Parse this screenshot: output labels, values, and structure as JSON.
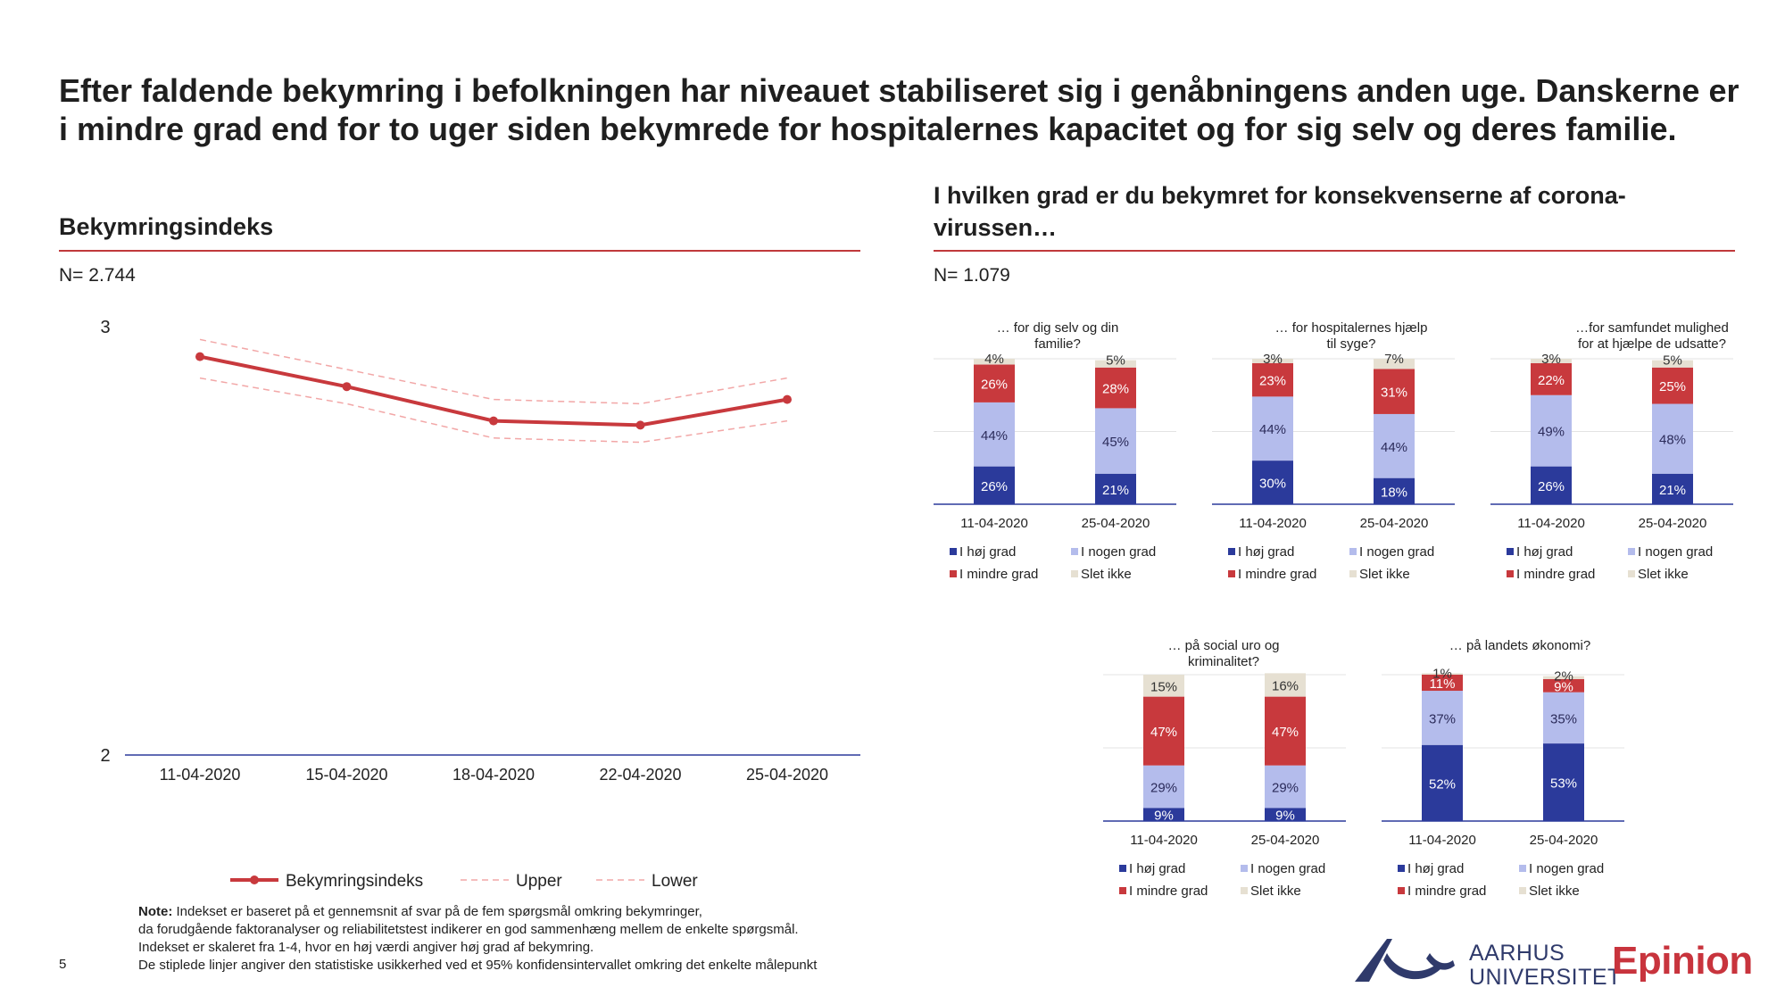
{
  "title": "Efter faldende bekymring i befolkningen har niveauet stabiliseret sig i genåbningens anden uge. Danskerne er i mindre grad end for to uger siden bekymrede for hospitalernes kapacitet og for sig selv og deres familie.",
  "left": {
    "heading": "Bekymringsindeks",
    "n": "N= 2.744"
  },
  "right": {
    "heading": "I hvilken grad er du bekymret for konsekvenserne af corona-virussen…",
    "n": "N= 1.079"
  },
  "chart_data": [
    {
      "type": "line",
      "x": [
        "11-04-2020",
        "15-04-2020",
        "18-04-2020",
        "22-04-2020",
        "25-04-2020"
      ],
      "series": [
        {
          "name": "Bekymringsindeks",
          "values": [
            2.93,
            2.86,
            2.78,
            2.77,
            2.83
          ],
          "color": "#c8393d",
          "style": "solid-markers"
        },
        {
          "name": "Upper",
          "values": [
            2.97,
            2.9,
            2.83,
            2.82,
            2.88
          ],
          "color": "#f2a7a7",
          "style": "dashed"
        },
        {
          "name": "Lower",
          "values": [
            2.88,
            2.82,
            2.74,
            2.73,
            2.78
          ],
          "color": "#f2a7a7",
          "style": "dashed"
        }
      ],
      "y_ticks": [
        "3",
        "2"
      ],
      "ylim": [
        2,
        3
      ],
      "legend": "bottom"
    },
    {
      "type": "bar",
      "stacked": true,
      "title": "… for dig selv og din familie?",
      "categories": [
        "11-04-2020",
        "25-04-2020"
      ],
      "series": [
        {
          "name": "I høj grad",
          "values": [
            26,
            21
          ]
        },
        {
          "name": "I nogen grad",
          "values": [
            44,
            45
          ]
        },
        {
          "name": "I mindre grad",
          "values": [
            26,
            28
          ]
        },
        {
          "name": "Slet ikke",
          "values": [
            4,
            5
          ]
        }
      ],
      "legend": "bottom"
    },
    {
      "type": "bar",
      "stacked": true,
      "title": "… for hospitalernes hjælp til syge?",
      "categories": [
        "11-04-2020",
        "25-04-2020"
      ],
      "series": [
        {
          "name": "I høj grad",
          "values": [
            30,
            18
          ]
        },
        {
          "name": "I nogen grad",
          "values": [
            44,
            44
          ]
        },
        {
          "name": "I mindre grad",
          "values": [
            23,
            31
          ]
        },
        {
          "name": "Slet ikke",
          "values": [
            3,
            7
          ]
        }
      ],
      "legend": "bottom"
    },
    {
      "type": "bar",
      "stacked": true,
      "title": "…for samfundet mulighed for at hjælpe de udsatte?",
      "categories": [
        "11-04-2020",
        "25-04-2020"
      ],
      "series": [
        {
          "name": "I høj grad",
          "values": [
            26,
            21
          ]
        },
        {
          "name": "I nogen grad",
          "values": [
            49,
            48
          ]
        },
        {
          "name": "I mindre grad",
          "values": [
            22,
            25
          ]
        },
        {
          "name": "Slet ikke",
          "values": [
            3,
            5
          ]
        }
      ],
      "legend": "bottom"
    },
    {
      "type": "bar",
      "stacked": true,
      "title": "… på social uro og kriminalitet?",
      "categories": [
        "11-04-2020",
        "25-04-2020"
      ],
      "series": [
        {
          "name": "I høj grad",
          "values": [
            9,
            9
          ]
        },
        {
          "name": "I nogen grad",
          "values": [
            29,
            29
          ]
        },
        {
          "name": "I mindre grad",
          "values": [
            47,
            47
          ]
        },
        {
          "name": "Slet ikke",
          "values": [
            15,
            16
          ]
        }
      ],
      "legend": "bottom"
    },
    {
      "type": "bar",
      "stacked": true,
      "title": "… på landets økonomi?",
      "categories": [
        "11-04-2020",
        "25-04-2020"
      ],
      "series": [
        {
          "name": "I høj grad",
          "values": [
            52,
            53
          ]
        },
        {
          "name": "I nogen grad",
          "values": [
            37,
            35
          ]
        },
        {
          "name": "I mindre grad",
          "values": [
            11,
            9
          ]
        },
        {
          "name": "Slet ikke",
          "values": [
            1,
            2
          ]
        }
      ],
      "legend": "bottom"
    }
  ],
  "colors": {
    "hoj": "#2b3a9b",
    "nogen": "#b4bcec",
    "mindre": "#c8393d",
    "slet": "#e6e0d2",
    "accent": "#c0393b"
  },
  "footnote": {
    "label": "Note:",
    "line1": " Indekset er baseret på et gennemsnit af svar på de fem spørgsmål omkring bekymringer,",
    "line2": "da forudgående faktoranalyser og reliabilitetstest indikerer en god sammenhæng mellem de enkelte spørgsmål.",
    "line3": "Indekset er skaleret fra 1-4, hvor en høj værdi angiver høj grad af bekymring.",
    "line4": "De stiplede linjer angiver den statistiske usikkerhed ved et 95% konfidensintervallet omkring det enkelte målepunkt"
  },
  "page_number": "5",
  "logos": {
    "au_line1": "AARHUS",
    "au_line2": "UNIVERSITET",
    "au_icon": "au-wave-icon",
    "epinion": "Epinion"
  }
}
